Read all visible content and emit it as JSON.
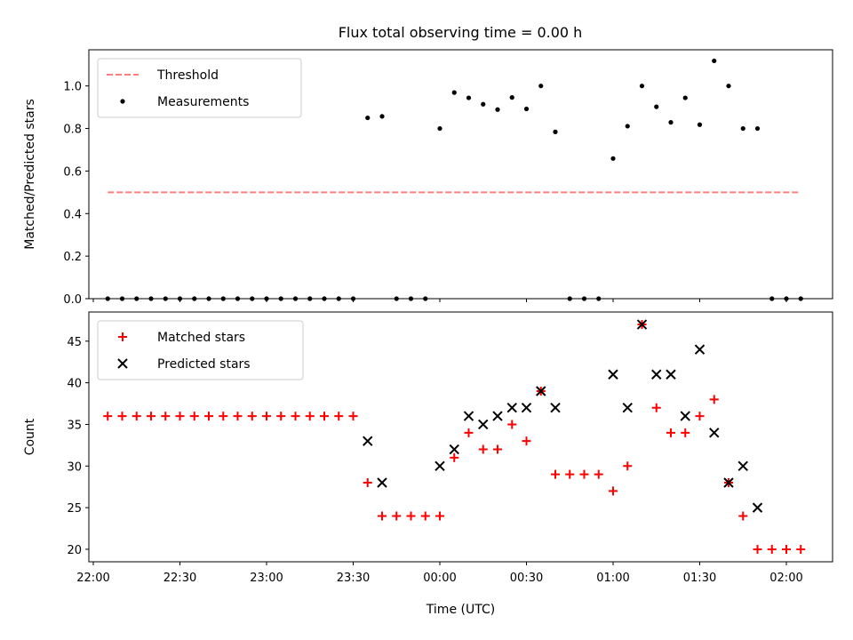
{
  "chart_data": [
    {
      "type": "scatter",
      "title": "Flux total observing time = 0.00 h",
      "ylabel": "Matched/Predicted stars",
      "xlabel": "",
      "ylim": [
        0,
        1.17
      ],
      "yticks": [
        "0.0",
        "0.2",
        "0.4",
        "0.6",
        "0.8",
        "1.0"
      ],
      "grid": false,
      "legend": "top-left",
      "series": [
        {
          "name": "Threshold",
          "style": "dashed-line",
          "color": "#ff7f7f",
          "points": [
            [
              "22:05",
              0.5
            ],
            [
              "02:05",
              0.5
            ]
          ]
        },
        {
          "name": "Measurements",
          "style": "dot",
          "color": "#000000",
          "points": [
            [
              "22:05",
              0
            ],
            [
              "22:10",
              0
            ],
            [
              "22:15",
              0
            ],
            [
              "22:20",
              0
            ],
            [
              "22:25",
              0
            ],
            [
              "22:30",
              0
            ],
            [
              "22:35",
              0
            ],
            [
              "22:40",
              0
            ],
            [
              "22:45",
              0
            ],
            [
              "22:50",
              0
            ],
            [
              "22:55",
              0
            ],
            [
              "23:00",
              0
            ],
            [
              "23:05",
              0
            ],
            [
              "23:10",
              0
            ],
            [
              "23:15",
              0
            ],
            [
              "23:20",
              0
            ],
            [
              "23:25",
              0
            ],
            [
              "23:30",
              0
            ],
            [
              "23:35",
              0.85
            ],
            [
              "23:40",
              0.857
            ],
            [
              "23:45",
              0
            ],
            [
              "23:50",
              0
            ],
            [
              "23:55",
              0
            ],
            [
              "00:00",
              0.8
            ],
            [
              "00:05",
              0.969
            ],
            [
              "00:10",
              0.944
            ],
            [
              "00:15",
              0.914
            ],
            [
              "00:20",
              0.889
            ],
            [
              "00:25",
              0.946
            ],
            [
              "00:30",
              0.892
            ],
            [
              "00:35",
              1.0
            ],
            [
              "00:40",
              0.784
            ],
            [
              "00:45",
              0
            ],
            [
              "00:50",
              0
            ],
            [
              "00:55",
              0
            ],
            [
              "01:00",
              0.659
            ],
            [
              "01:05",
              0.811
            ],
            [
              "01:10",
              1.0
            ],
            [
              "01:15",
              0.902
            ],
            [
              "01:20",
              0.829
            ],
            [
              "01:25",
              0.944
            ],
            [
              "01:30",
              0.818
            ],
            [
              "01:35",
              1.118
            ],
            [
              "01:40",
              1.0
            ],
            [
              "01:45",
              0.8
            ],
            [
              "01:50",
              0.8
            ],
            [
              "01:55",
              0
            ],
            [
              "02:00",
              0
            ],
            [
              "02:05",
              0
            ]
          ]
        }
      ]
    },
    {
      "type": "scatter",
      "title": "",
      "ylabel": "Count",
      "xlabel": "Time (UTC)",
      "ylim": [
        18.5,
        48.5
      ],
      "yticks": [
        "20",
        "25",
        "30",
        "35",
        "40",
        "45"
      ],
      "xticks": [
        "22:00",
        "22:30",
        "23:00",
        "23:30",
        "00:00",
        "00:30",
        "01:00",
        "01:30",
        "02:00"
      ],
      "grid": false,
      "legend": "top-left",
      "series": [
        {
          "name": "Matched stars",
          "style": "plus",
          "color": "#ff0000",
          "points": [
            [
              "22:05",
              36
            ],
            [
              "22:10",
              36
            ],
            [
              "22:15",
              36
            ],
            [
              "22:20",
              36
            ],
            [
              "22:25",
              36
            ],
            [
              "22:30",
              36
            ],
            [
              "22:35",
              36
            ],
            [
              "22:40",
              36
            ],
            [
              "22:45",
              36
            ],
            [
              "22:50",
              36
            ],
            [
              "22:55",
              36
            ],
            [
              "23:00",
              36
            ],
            [
              "23:05",
              36
            ],
            [
              "23:10",
              36
            ],
            [
              "23:15",
              36
            ],
            [
              "23:20",
              36
            ],
            [
              "23:25",
              36
            ],
            [
              "23:30",
              36
            ],
            [
              "23:35",
              28
            ],
            [
              "23:40",
              24
            ],
            [
              "23:45",
              24
            ],
            [
              "23:50",
              24
            ],
            [
              "23:55",
              24
            ],
            [
              "00:00",
              24
            ],
            [
              "00:05",
              31
            ],
            [
              "00:10",
              34
            ],
            [
              "00:15",
              32
            ],
            [
              "00:20",
              32
            ],
            [
              "00:25",
              35
            ],
            [
              "00:30",
              33
            ],
            [
              "00:35",
              39
            ],
            [
              "00:40",
              29
            ],
            [
              "00:45",
              29
            ],
            [
              "00:50",
              29
            ],
            [
              "00:55",
              29
            ],
            [
              "01:00",
              27
            ],
            [
              "01:05",
              30
            ],
            [
              "01:10",
              47
            ],
            [
              "01:15",
              37
            ],
            [
              "01:20",
              34
            ],
            [
              "01:25",
              34
            ],
            [
              "01:30",
              36
            ],
            [
              "01:35",
              38
            ],
            [
              "01:40",
              28
            ],
            [
              "01:45",
              24
            ],
            [
              "01:50",
              20
            ],
            [
              "01:55",
              20
            ],
            [
              "02:00",
              20
            ],
            [
              "02:05",
              20
            ]
          ]
        },
        {
          "name": "Predicted stars",
          "style": "x",
          "color": "#000000",
          "points": [
            [
              "23:35",
              33
            ],
            [
              "23:40",
              28
            ],
            [
              "00:00",
              30
            ],
            [
              "00:05",
              32
            ],
            [
              "00:10",
              36
            ],
            [
              "00:15",
              35
            ],
            [
              "00:20",
              36
            ],
            [
              "00:25",
              37
            ],
            [
              "00:30",
              37
            ],
            [
              "00:35",
              39
            ],
            [
              "00:40",
              37
            ],
            [
              "01:00",
              41
            ],
            [
              "01:05",
              37
            ],
            [
              "01:10",
              47
            ],
            [
              "01:15",
              41
            ],
            [
              "01:20",
              41
            ],
            [
              "01:25",
              36
            ],
            [
              "01:30",
              44
            ],
            [
              "01:35",
              34
            ],
            [
              "01:40",
              28
            ],
            [
              "01:45",
              30
            ],
            [
              "01:50",
              25
            ]
          ]
        }
      ]
    }
  ]
}
